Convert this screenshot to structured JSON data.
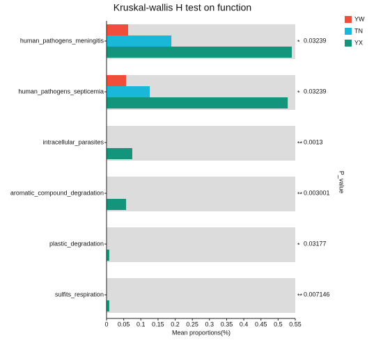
{
  "chart_data": {
    "type": "hbar",
    "title": "Kruskal-wallis H test on function",
    "x_label": "Mean proportions(%)",
    "y2_label": "P_value",
    "categories": [
      "human_pathogens_meningitis",
      "human_pathogens_septicemia",
      "intracellular_parasites",
      "aromatic_compound_degradation",
      "plastic_degradation",
      "sulfits_respiration"
    ],
    "series": [
      {
        "name": "YW",
        "color": "#f04e3b",
        "values": [
          0.063,
          0.057,
          0,
          0,
          0,
          0
        ]
      },
      {
        "name": "TN",
        "color": "#1ab8d8",
        "values": [
          0.189,
          0.126,
          0,
          0,
          0,
          0
        ]
      },
      {
        "name": "YX",
        "color": "#12957a",
        "values": [
          0.54,
          0.528,
          0.075,
          0.057,
          0.008,
          0.008
        ]
      }
    ],
    "p_values": [
      "0.03239",
      "0.03239",
      "0.0013",
      "0.003001",
      "0.03177",
      "0.007146"
    ],
    "significance": [
      "*",
      "*",
      "**",
      "**",
      "*",
      "**"
    ],
    "xlim": [
      0,
      0.55
    ],
    "xticks": [
      0,
      0.05,
      0.1,
      0.15,
      0.2,
      0.25,
      0.3,
      0.35,
      0.4,
      0.45,
      0.5,
      0.55
    ],
    "band_color": "#dcdcdc",
    "legend": "top-right"
  }
}
